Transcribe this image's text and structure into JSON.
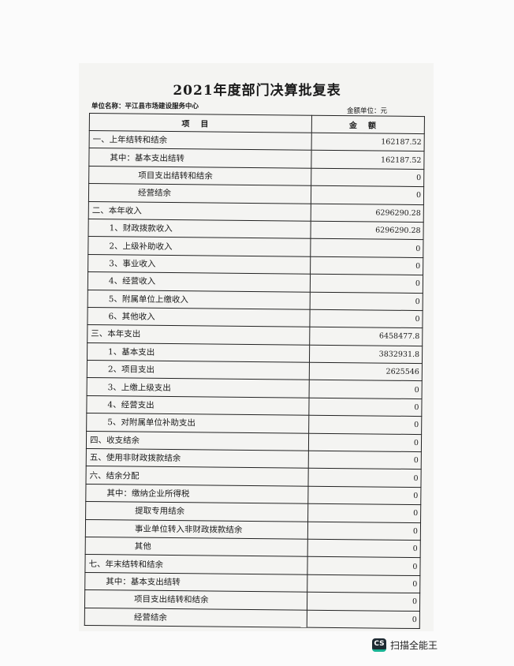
{
  "document": {
    "title": "2021年度部门决算批复表",
    "unit_name": "单位名称：平江县市场建设服务中心",
    "amount_unit": "金额单位：元",
    "headers": {
      "item": "项目",
      "amount": "金额"
    },
    "rows": [
      {
        "label": "一、上年结转和结余",
        "level": 0,
        "amount": "162187.52"
      },
      {
        "label": "其中：基本支出结转",
        "level": 1,
        "amount": "162187.52"
      },
      {
        "label": "项目支出结转和结余",
        "level": 2,
        "amount": "0"
      },
      {
        "label": "经营结余",
        "level": 2,
        "amount": "0"
      },
      {
        "label": "二、本年收入",
        "level": 0,
        "amount": "6296290.28"
      },
      {
        "label": "1、财政拨款收入",
        "level": 1,
        "amount": "6296290.28"
      },
      {
        "label": "2、上级补助收入",
        "level": 1,
        "amount": "0"
      },
      {
        "label": "3、事业收入",
        "level": 1,
        "amount": "0"
      },
      {
        "label": "4、经营收入",
        "level": 1,
        "amount": "0"
      },
      {
        "label": "5、附属单位上缴收入",
        "level": 1,
        "amount": "0"
      },
      {
        "label": "6、其他收入",
        "level": 1,
        "amount": "0"
      },
      {
        "label": "三、本年支出",
        "level": 0,
        "amount": "6458477.8"
      },
      {
        "label": "1、基本支出",
        "level": 1,
        "amount": "3832931.8"
      },
      {
        "label": "2、项目支出",
        "level": 1,
        "amount": "2625546"
      },
      {
        "label": "3、上缴上级支出",
        "level": 1,
        "amount": "0"
      },
      {
        "label": "4、经营支出",
        "level": 1,
        "amount": "0"
      },
      {
        "label": "5、对附属单位补助支出",
        "level": 1,
        "amount": "0"
      },
      {
        "label": "四、收支结余",
        "level": 0,
        "amount": "0"
      },
      {
        "label": "五、使用非财政拨款结余",
        "level": 0,
        "amount": "0"
      },
      {
        "label": "六、结余分配",
        "level": 0,
        "amount": "0"
      },
      {
        "label": "其中：缴纳企业所得税",
        "level": 1,
        "amount": "0"
      },
      {
        "label": "提取专用结余",
        "level": 2,
        "amount": "0"
      },
      {
        "label": "事业单位转入非财政拨款结余",
        "level": 2,
        "amount": "0"
      },
      {
        "label": "其他",
        "level": 2,
        "amount": "0"
      },
      {
        "label": "七、年末结转和结余",
        "level": 0,
        "amount": "0"
      },
      {
        "label": "其中：基本支出结转",
        "level": 1,
        "amount": "0"
      },
      {
        "label": "项目支出结转和结余",
        "level": 2,
        "amount": "0"
      },
      {
        "label": "经营结余",
        "level": 2,
        "amount": "0"
      }
    ]
  },
  "watermark": {
    "logo_text": "CS",
    "app_name": "扫描全能王"
  }
}
